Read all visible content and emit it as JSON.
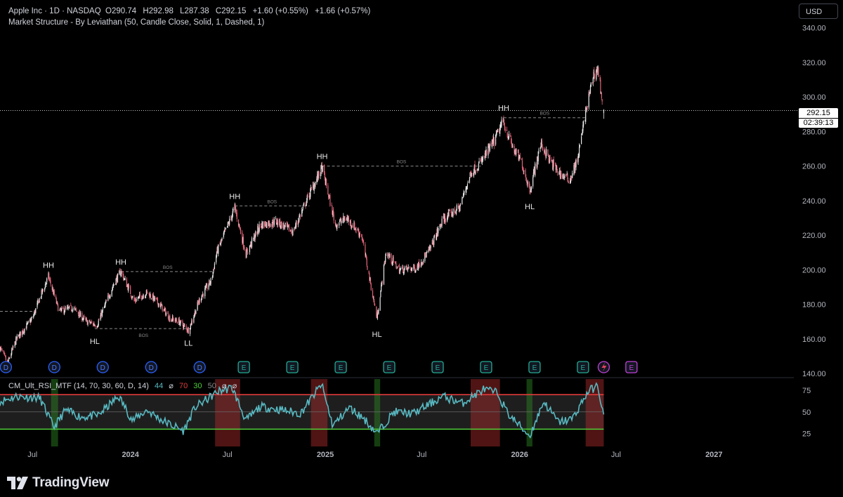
{
  "header": {
    "symbol": "Apple Inc · 1D · NASDAQ",
    "open_label": "O",
    "open": "290.74",
    "high_label": "H",
    "high": "292.98",
    "low_label": "L",
    "low": "287.38",
    "close_label": "C",
    "close": "292.15",
    "change": "+1.60 (+0.55%)",
    "change2": "+1.66 (+0.57%)",
    "indicator": "Market Structure - By Leviathan (50, Candle Close, Solid, 1, Dashed, 1)"
  },
  "currency_button": "USD",
  "last_price": {
    "price": "292.15",
    "countdown": "02:39:13"
  },
  "rsi_legend": {
    "name": "CM_Ult_RSI_MTF (14, 70, 30, 60, D, 14)",
    "v1": "44",
    "v2": "⌀",
    "v3": "70",
    "v4": "30",
    "v5": "50",
    "v6": "⌀",
    "v7": "⌀"
  },
  "brand": "TradingView",
  "colors": {
    "up": "#e8e8e8",
    "down": "#e06478",
    "rsi_line": "#58b9c2",
    "rsi_upper": "#e03b3b",
    "rsi_lower": "#4fcf39",
    "bos": "#8a8a8a"
  },
  "chart_data": {
    "type": "candlestick",
    "title": "",
    "price_axis": {
      "ticks": [
        140,
        160,
        180,
        200,
        220,
        240,
        260,
        280,
        300,
        320,
        340
      ],
      "range": [
        138,
        348
      ]
    },
    "time_axis": {
      "labels": [
        "Jul",
        "2024",
        "Jul",
        "2025",
        "Jul",
        "2026",
        "Jul",
        "2027"
      ],
      "range": [
        "2023-05-01",
        "2027-05-31"
      ]
    },
    "price_path": [
      [
        "2023-05-01",
        155
      ],
      [
        "2023-05-15",
        146
      ],
      [
        "2023-06-01",
        160
      ],
      [
        "2023-07-01",
        172
      ],
      [
        "2023-07-15",
        184
      ],
      [
        "2023-07-31",
        196
      ],
      [
        "2023-08-20",
        176
      ],
      [
        "2023-09-15",
        178
      ],
      [
        "2023-10-10",
        170
      ],
      [
        "2023-10-30",
        168
      ],
      [
        "2023-12-01",
        192
      ],
      [
        "2023-12-14",
        199
      ],
      [
        "2024-01-08",
        182
      ],
      [
        "2024-02-01",
        187
      ],
      [
        "2024-02-25",
        180
      ],
      [
        "2024-03-15",
        172
      ],
      [
        "2024-04-01",
        170
      ],
      [
        "2024-04-19",
        165
      ],
      [
        "2024-05-10",
        183
      ],
      [
        "2024-06-01",
        194
      ],
      [
        "2024-06-11",
        210
      ],
      [
        "2024-07-05",
        228
      ],
      [
        "2024-07-15",
        236
      ],
      [
        "2024-08-05",
        209
      ],
      [
        "2024-09-01",
        226
      ],
      [
        "2024-10-01",
        228
      ],
      [
        "2024-11-01",
        222
      ],
      [
        "2024-12-01",
        243
      ],
      [
        "2024-12-26",
        259
      ],
      [
        "2025-01-20",
        226
      ],
      [
        "2025-02-10",
        230
      ],
      [
        "2025-03-10",
        220
      ],
      [
        "2025-04-08",
        172
      ],
      [
        "2025-04-25",
        210
      ],
      [
        "2025-05-20",
        200
      ],
      [
        "2025-06-20",
        201
      ],
      [
        "2025-07-15",
        211
      ],
      [
        "2025-08-10",
        229
      ],
      [
        "2025-09-10",
        236
      ],
      [
        "2025-10-01",
        256
      ],
      [
        "2025-10-20",
        262
      ],
      [
        "2025-11-15",
        275
      ],
      [
        "2025-12-01",
        286
      ],
      [
        "2025-12-20",
        270
      ],
      [
        "2026-01-05",
        262
      ],
      [
        "2026-01-20",
        246
      ],
      [
        "2026-02-10",
        273
      ],
      [
        "2026-03-01",
        262
      ],
      [
        "2026-03-20",
        255
      ],
      [
        "2026-04-05",
        252
      ],
      [
        "2026-04-20",
        264
      ],
      [
        "2026-05-05",
        291
      ],
      [
        "2026-05-20",
        313
      ],
      [
        "2026-05-28",
        316
      ],
      [
        "2026-06-08",
        292
      ]
    ],
    "structure_labels": [
      {
        "text": "HH",
        "date": "2023-07-31",
        "price": 197,
        "pos": "above"
      },
      {
        "text": "HL",
        "date": "2023-10-26",
        "price": 166,
        "pos": "below"
      },
      {
        "text": "HH",
        "date": "2023-12-14",
        "price": 199,
        "pos": "above"
      },
      {
        "text": "LL",
        "date": "2024-04-19",
        "price": 165,
        "pos": "below"
      },
      {
        "text": "HH",
        "date": "2024-07-15",
        "price": 237,
        "pos": "above"
      },
      {
        "text": "HH",
        "date": "2024-12-26",
        "price": 260,
        "pos": "above"
      },
      {
        "text": "HL",
        "date": "2025-04-08",
        "price": 170,
        "pos": "below"
      },
      {
        "text": "HH",
        "date": "2025-12-02",
        "price": 288,
        "pos": "above"
      },
      {
        "text": "HL",
        "date": "2026-01-20",
        "price": 244,
        "pos": "below"
      }
    ],
    "bos_lines": [
      {
        "from": "2023-05-01",
        "to": "2023-07-01",
        "price": 176,
        "label": ""
      },
      {
        "from": "2023-12-14",
        "to": "2024-06-07",
        "price": 199,
        "label": "BOS"
      },
      {
        "from": "2023-10-26",
        "to": "2024-04-26",
        "price": 166,
        "label": "BOS"
      },
      {
        "from": "2024-07-15",
        "to": "2024-12-02",
        "price": 237,
        "label": "BOS"
      },
      {
        "from": "2024-12-26",
        "to": "2025-10-20",
        "price": 260,
        "label": "BOS"
      },
      {
        "from": "2025-12-02",
        "to": "2026-05-05",
        "price": 288,
        "label": "BOS"
      }
    ],
    "event_markers": [
      {
        "type": "D",
        "date": "2023-05-12"
      },
      {
        "type": "D",
        "date": "2023-08-11"
      },
      {
        "type": "D",
        "date": "2023-11-10"
      },
      {
        "type": "D",
        "date": "2024-02-09"
      },
      {
        "type": "D",
        "date": "2024-05-10"
      },
      {
        "type": "E",
        "date": "2024-08-01"
      },
      {
        "type": "E",
        "date": "2024-10-31"
      },
      {
        "type": "E",
        "date": "2025-01-30"
      },
      {
        "type": "E",
        "date": "2025-05-01"
      },
      {
        "type": "E",
        "date": "2025-07-31"
      },
      {
        "type": "E",
        "date": "2025-10-30"
      },
      {
        "type": "E",
        "date": "2026-01-29"
      },
      {
        "type": "E",
        "date": "2026-04-30"
      },
      {
        "type": "E-upcoming",
        "date": "2026-07-30"
      }
    ],
    "rsi_panel": {
      "ticks": [
        25,
        50,
        75
      ],
      "range": [
        10,
        88
      ],
      "upper": 70,
      "lower": 30,
      "mid": 50,
      "path": [
        [
          "2023-05-01",
          62
        ],
        [
          "2023-06-01",
          68
        ],
        [
          "2023-07-15",
          66
        ],
        [
          "2023-08-10",
          32
        ],
        [
          "2023-09-01",
          52
        ],
        [
          "2023-10-01",
          44
        ],
        [
          "2023-11-01",
          46
        ],
        [
          "2023-12-10",
          68
        ],
        [
          "2024-01-05",
          40
        ],
        [
          "2024-02-01",
          52
        ],
        [
          "2024-03-01",
          40
        ],
        [
          "2024-04-10",
          28
        ],
        [
          "2024-05-01",
          55
        ],
        [
          "2024-06-15",
          74
        ],
        [
          "2024-07-10",
          78
        ],
        [
          "2024-08-05",
          40
        ],
        [
          "2024-09-01",
          56
        ],
        [
          "2024-10-15",
          52
        ],
        [
          "2024-11-15",
          48
        ],
        [
          "2024-12-25",
          82
        ],
        [
          "2025-01-15",
          34
        ],
        [
          "2025-02-15",
          55
        ],
        [
          "2025-03-15",
          42
        ],
        [
          "2025-04-08",
          25
        ],
        [
          "2025-05-10",
          50
        ],
        [
          "2025-06-15",
          48
        ],
        [
          "2025-08-10",
          68
        ],
        [
          "2025-09-15",
          60
        ],
        [
          "2025-10-25",
          76
        ],
        [
          "2025-11-20",
          72
        ],
        [
          "2025-12-10",
          48
        ],
        [
          "2026-01-20",
          22
        ],
        [
          "2026-02-15",
          62
        ],
        [
          "2026-03-15",
          38
        ],
        [
          "2026-04-10",
          42
        ],
        [
          "2026-05-10",
          74
        ],
        [
          "2026-05-28",
          80
        ],
        [
          "2026-06-08",
          44
        ]
      ],
      "overbought_zones": [
        [
          "2024-06-08",
          "2024-07-25"
        ],
        [
          "2024-12-05",
          "2025-01-05"
        ],
        [
          "2025-10-01",
          "2025-11-25"
        ],
        [
          "2026-05-05",
          "2026-06-08"
        ]
      ],
      "oversold_zones": [
        [
          "2023-08-05",
          "2023-08-18"
        ],
        [
          "2025-04-03",
          "2025-04-14"
        ],
        [
          "2026-01-14",
          "2026-01-25"
        ]
      ]
    }
  }
}
